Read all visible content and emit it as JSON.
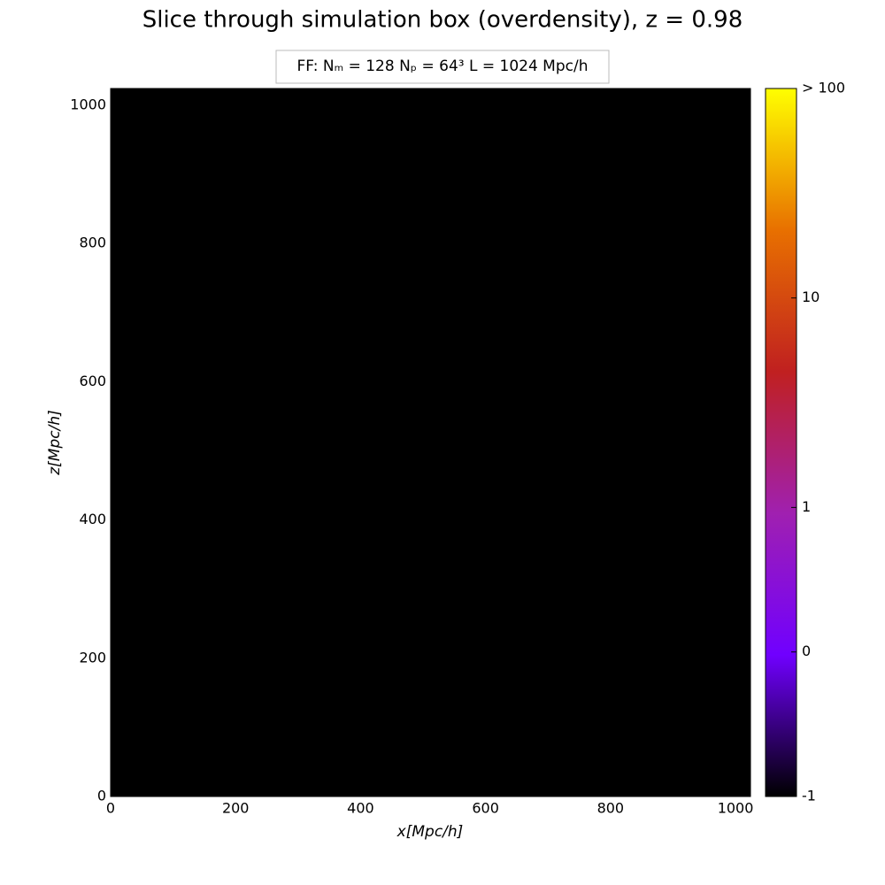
{
  "chart_data": {
    "type": "heatmap",
    "title": "Slice through simulation box (overdensity), z = 0.98",
    "legend_text": "FF:  Nₘ = 128   Nₚ = 64³   L = 1024 Mpc/h",
    "x_label": "x[Mpc/h]",
    "y_label": "z[Mpc/h]",
    "xlim": [
      0,
      1024
    ],
    "ylim": [
      0,
      1024
    ],
    "xticks": [
      0,
      200,
      400,
      600,
      800,
      1000
    ],
    "yticks": [
      0,
      200,
      400,
      600,
      800,
      1000
    ],
    "colorbar": {
      "scale": "symlog",
      "linthresh": 1,
      "linscale": 0.69,
      "lim": [
        -1,
        100
      ],
      "ticks": [
        {
          "value": 100,
          "label": "> 100"
        },
        10,
        1,
        0,
        -1
      ],
      "colors": [
        "#000000",
        "#7000ff",
        "#a020b0",
        "#c02020",
        "#e87000",
        "#ffff00"
      ]
    },
    "background": "#000000"
  }
}
